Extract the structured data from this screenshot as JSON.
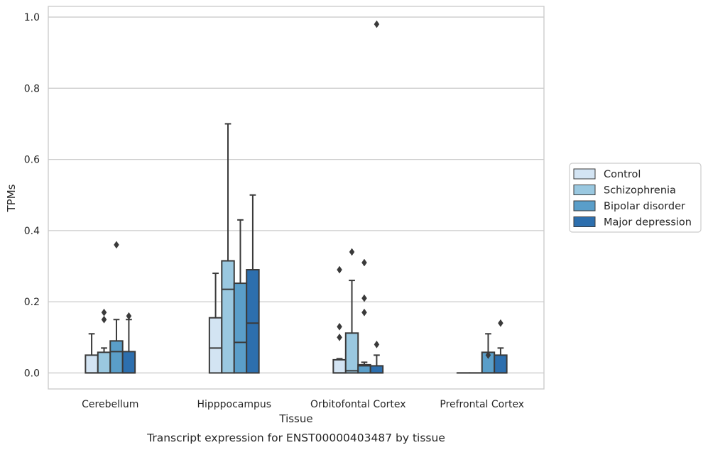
{
  "chart_data": {
    "type": "box",
    "xlabel": "Tissue",
    "ylabel": "TPMs",
    "caption": "Transcript expression for ENST00000403487 by tissue",
    "ylim": [
      -0.045,
      1.03
    ],
    "yticks": [
      0.0,
      0.2,
      0.4,
      0.6,
      0.8,
      1.0
    ],
    "ytick_labels": [
      "0.0",
      "0.2",
      "0.4",
      "0.6",
      "0.8",
      "1.0"
    ],
    "grid": "horizontal",
    "legend_position": "right",
    "categories": [
      "Cerebellum",
      "Hipppocampus",
      "Orbitofontal Cortex",
      "Prefrontal Cortex"
    ],
    "series": [
      {
        "name": "Control",
        "color": "#d3e4f3",
        "boxes": [
          {
            "q1": 0.0,
            "median": 0.0,
            "q3": 0.05,
            "whisker_low": 0.0,
            "whisker_high": 0.11,
            "outliers": []
          },
          {
            "q1": 0.0,
            "median": 0.07,
            "q3": 0.155,
            "whisker_low": 0.0,
            "whisker_high": 0.28,
            "outliers": []
          },
          {
            "q1": 0.0,
            "median": 0.0,
            "q3": 0.037,
            "whisker_low": 0.0,
            "whisker_high": 0.04,
            "outliers": [
              0.1,
              0.13,
              0.29
            ]
          },
          {
            "q1": 0.0,
            "median": 0.0,
            "q3": 0.0,
            "whisker_low": 0.0,
            "whisker_high": 0.0,
            "outliers": []
          }
        ]
      },
      {
        "name": "Schizophrenia",
        "color": "#9ac8e0",
        "boxes": [
          {
            "q1": 0.0,
            "median": 0.0,
            "q3": 0.058,
            "whisker_low": 0.0,
            "whisker_high": 0.07,
            "outliers": [
              0.15,
              0.17
            ]
          },
          {
            "q1": 0.0,
            "median": 0.235,
            "q3": 0.315,
            "whisker_low": 0.0,
            "whisker_high": 0.7,
            "outliers": []
          },
          {
            "q1": 0.0,
            "median": 0.006,
            "q3": 0.112,
            "whisker_low": 0.0,
            "whisker_high": 0.26,
            "outliers": [
              0.34
            ]
          },
          {
            "q1": 0.0,
            "median": 0.0,
            "q3": 0.0,
            "whisker_low": 0.0,
            "whisker_high": 0.0,
            "outliers": []
          }
        ]
      },
      {
        "name": "Bipolar disorder",
        "color": "#5a9ec9",
        "boxes": [
          {
            "q1": 0.0,
            "median": 0.06,
            "q3": 0.09,
            "whisker_low": 0.0,
            "whisker_high": 0.15,
            "outliers": [
              0.36
            ]
          },
          {
            "q1": 0.0,
            "median": 0.086,
            "q3": 0.252,
            "whisker_low": 0.0,
            "whisker_high": 0.43,
            "outliers": []
          },
          {
            "q1": 0.0,
            "median": 0.02,
            "q3": 0.023,
            "whisker_low": 0.0,
            "whisker_high": 0.03,
            "outliers": [
              0.17,
              0.21,
              0.31
            ]
          },
          {
            "q1": 0.0,
            "median": 0.0,
            "q3": 0.058,
            "whisker_low": 0.0,
            "whisker_high": 0.11,
            "outliers": [
              0.05
            ]
          }
        ]
      },
      {
        "name": "Major depression",
        "color": "#2d6fae",
        "boxes": [
          {
            "q1": 0.0,
            "median": 0.0,
            "q3": 0.06,
            "whisker_low": 0.0,
            "whisker_high": 0.15,
            "outliers": [
              0.16
            ]
          },
          {
            "q1": 0.0,
            "median": 0.14,
            "q3": 0.29,
            "whisker_low": 0.0,
            "whisker_high": 0.5,
            "outliers": []
          },
          {
            "q1": 0.0,
            "median": 0.0,
            "q3": 0.02,
            "whisker_low": 0.0,
            "whisker_high": 0.05,
            "outliers": [
              0.08,
              0.98
            ]
          },
          {
            "q1": 0.0,
            "median": 0.0,
            "q3": 0.05,
            "whisker_low": 0.0,
            "whisker_high": 0.07,
            "outliers": [
              0.14
            ]
          }
        ]
      }
    ],
    "colors": {
      "edge": "#3a3a3a",
      "grid": "#cccccc",
      "frame": "#cccccc",
      "text": "#262626"
    }
  }
}
